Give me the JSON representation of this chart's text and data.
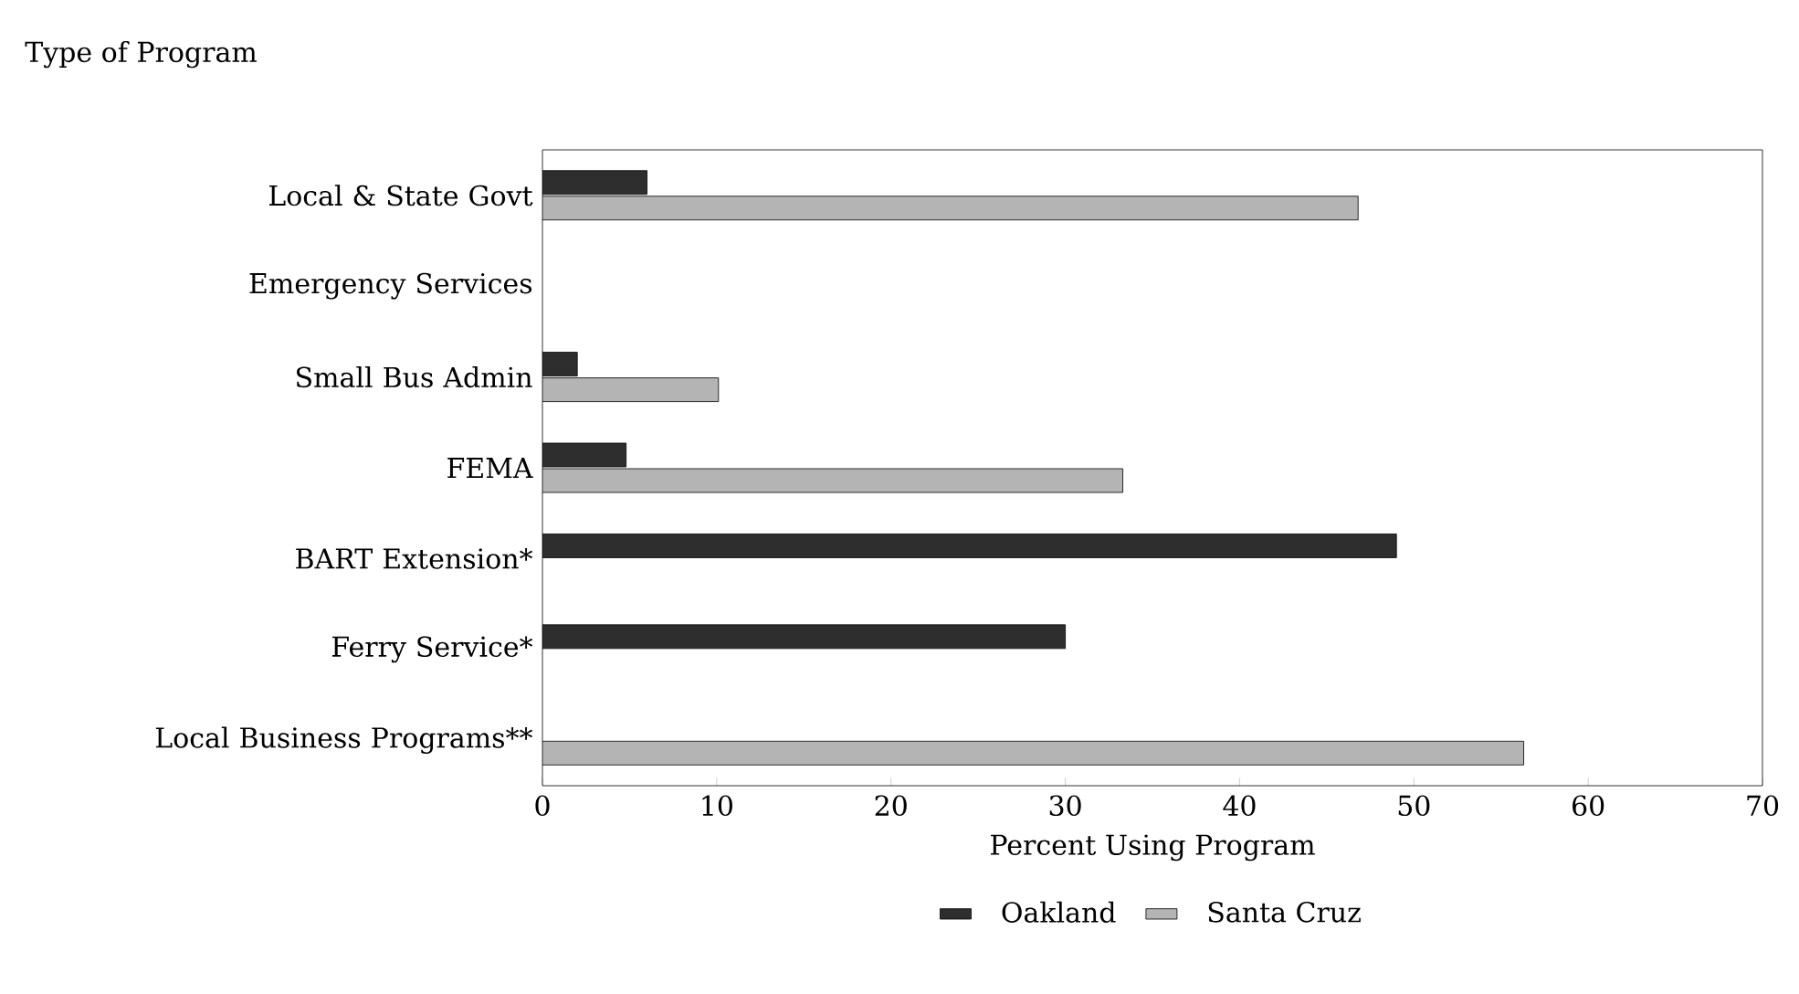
{
  "chart_data": {
    "type": "bar",
    "orientation": "horizontal",
    "ylabel": "Type of Program",
    "xlabel": "Percent Using Program",
    "categories": [
      "Local & State Govt",
      "Emergency Services",
      "Small Bus Admin",
      "FEMA",
      "BART Extension*",
      "Ferry Service*",
      "Local Business Programs**"
    ],
    "series": [
      {
        "name": "Oakland",
        "color": "#2e2e2e",
        "values": [
          6,
          null,
          2,
          4.8,
          49,
          30,
          null
        ]
      },
      {
        "name": "Santa Cruz",
        "color": "#b4b4b4",
        "values": [
          46.8,
          null,
          10.1,
          33.3,
          null,
          null,
          56.3
        ]
      }
    ],
    "xlim": [
      0,
      70
    ],
    "xticks": [
      0,
      10,
      20,
      30,
      40,
      50,
      60,
      70
    ],
    "grid": false,
    "legend": "bottom"
  }
}
